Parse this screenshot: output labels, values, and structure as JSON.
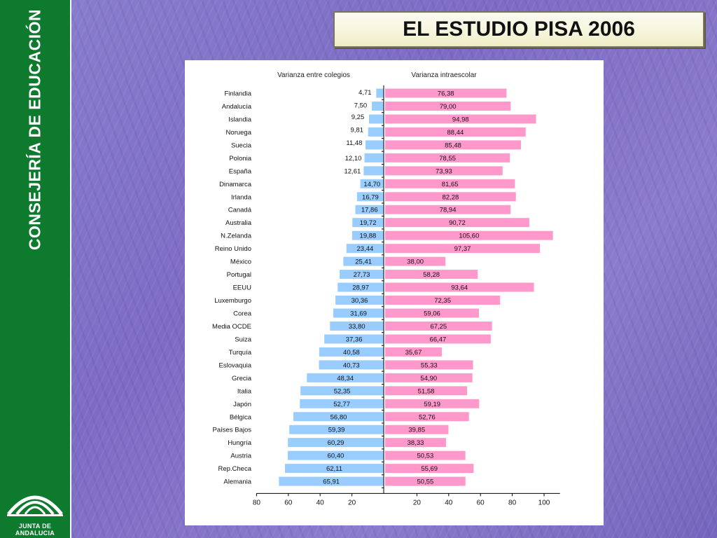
{
  "sidebar": {
    "title": "CONSEJERÍA DE EDUCACIÓN",
    "logo_text": "JUNTA DE ANDALUCIA"
  },
  "header": {
    "title": "EL ESTUDIO PISA 2006"
  },
  "colors": {
    "sidebar_green": "#0d7a2e",
    "left_bar": "#99ccff",
    "right_bar": "#ff99cc"
  },
  "chart_data": {
    "type": "bar",
    "orientation": "horizontal-diverging",
    "categories": [
      "Finlandia",
      "Andalucía",
      "Islandia",
      "Noruega",
      "Suecia",
      "Polonia",
      "España",
      "Dinamarca",
      "Irlanda",
      "Canadá",
      "Australia",
      "N.Zelanda",
      "Reino Unido",
      "México",
      "Portugal",
      "EEUU",
      "Luxemburgo",
      "Corea",
      "Media OCDE",
      "Suiza",
      "Turquía",
      "Eslovaquia",
      "Grecia",
      "Italia",
      "Japón",
      "Bélgica",
      "Países Bajos",
      "Hungría",
      "Austria",
      "Rep.Checa",
      "Alemania"
    ],
    "series": [
      {
        "name": "Varianza entre colegios",
        "values": [
          4.71,
          7.5,
          9.25,
          9.81,
          11.48,
          12.1,
          12.61,
          14.7,
          16.79,
          17.86,
          19.72,
          19.88,
          23.44,
          25.41,
          27.73,
          28.97,
          30.36,
          31.69,
          33.8,
          37.36,
          40.58,
          40.73,
          48.34,
          52.35,
          52.77,
          56.8,
          59.39,
          60.29,
          60.4,
          62.11,
          65.91
        ],
        "labels": [
          "4,71",
          "7,50",
          "9,25",
          "9,81",
          "11,48",
          "12,10",
          "12,61",
          "14,70",
          "16,79",
          "17,86",
          "19,72",
          "19,88",
          "23,44",
          "25,41",
          "27,73",
          "28,97",
          "30,36",
          "31,69",
          "33,80",
          "37,36",
          "40,58",
          "40,73",
          "48,34",
          "52,35",
          "52,77",
          "56,80",
          "59,39",
          "60,29",
          "60,40",
          "62,11",
          "65,91"
        ]
      },
      {
        "name": "Varianza intraescolar",
        "values": [
          76.38,
          79.0,
          94.98,
          88.44,
          85.48,
          78.55,
          73.93,
          81.65,
          82.28,
          78.94,
          90.72,
          105.6,
          97.37,
          38.0,
          58.28,
          93.64,
          72.35,
          59.06,
          67.25,
          66.47,
          35.67,
          55.33,
          54.9,
          51.58,
          59.19,
          52.76,
          39.85,
          38.33,
          50.53,
          55.69,
          50.55
        ],
        "labels": [
          "76,38",
          "79,00",
          "94,98",
          "88,44",
          "85,48",
          "78,55",
          "73,93",
          "81,65",
          "82,28",
          "78,94",
          "90,72",
          "105,60",
          "97,37",
          "38,00",
          "58,28",
          "93,64",
          "72,35",
          "59,06",
          "67,25",
          "66,47",
          "35,67",
          "55,33",
          "54,90",
          "51,58",
          "59,19",
          "52,76",
          "39,85",
          "38,33",
          "50,53",
          "55,69",
          "50,55"
        ]
      }
    ],
    "left_ticks": [
      "80",
      "60",
      "40",
      "20"
    ],
    "right_ticks": [
      "20",
      "40",
      "60",
      "80",
      "100"
    ],
    "left_range": [
      0,
      80
    ],
    "right_range": [
      0,
      110
    ]
  }
}
